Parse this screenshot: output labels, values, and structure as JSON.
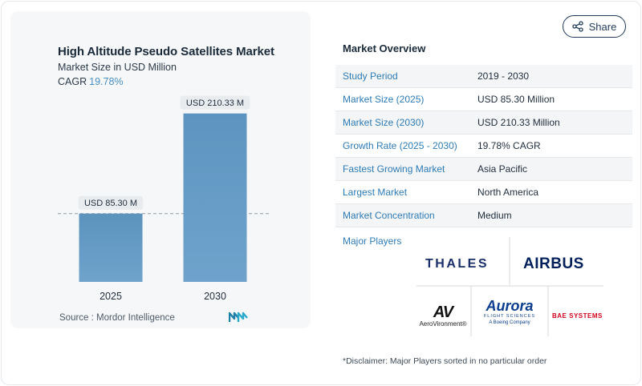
{
  "chart_data": {
    "type": "bar",
    "title": "High Altitude Pseudo Satellites Market",
    "subtitle": "Market Size in USD Million",
    "cagr_label": "CAGR",
    "cagr_value": "19.78%",
    "categories": [
      "2025",
      "2030"
    ],
    "values": [
      85.3,
      210.33
    ],
    "data_labels": [
      "USD 85.30 M",
      "USD 210.33 M"
    ],
    "ylim": [
      0,
      240
    ],
    "bar_colors": [
      "#5b93bd",
      "#5d95c0"
    ],
    "reference_line": "dashed line at the 2025 value",
    "grid": false
  },
  "source": "Source :  Mordor Intelligence",
  "share_label": "Share",
  "overview": {
    "title": "Market Overview",
    "rows": [
      {
        "label": "Study Period",
        "value": "2019 - 2030"
      },
      {
        "label": "Market Size (2025)",
        "value": "USD 85.30 Million"
      },
      {
        "label": "Market Size (2030)",
        "value": "USD 210.33 Million"
      },
      {
        "label": "Growth Rate (2025 - 2030)",
        "value": "19.78% CAGR"
      },
      {
        "label": "Fastest Growing Market",
        "value": "Asia Pacific"
      },
      {
        "label": "Largest Market",
        "value": "North America"
      },
      {
        "label": "Market Concentration",
        "value": "Medium"
      }
    ]
  },
  "players": {
    "title": "Major Players",
    "logos": {
      "thales": "THALES",
      "airbus": "AIRBUS",
      "av_mark": "AV",
      "av_name": "AeroVironment®",
      "aurora": "Aurora",
      "aurora_sub": "FLIGHT SCIENCES",
      "aurora_boeing": "A Boeing Company",
      "bae": "BAE SYSTEMS"
    }
  },
  "disclaimer": "*Disclaimer: Major Players sorted in no particular order",
  "colors": {
    "accent_blue": "#2d7bb7",
    "bar_blue": "#5b93bd",
    "label_bg": "#e9ecef"
  }
}
